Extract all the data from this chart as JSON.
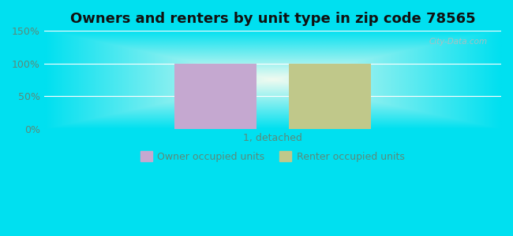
{
  "title": "Owners and renters by unit type in zip code 78565",
  "categories": [
    "1, detached"
  ],
  "owner_values": [
    100
  ],
  "renter_values": [
    100
  ],
  "owner_color": "#c5a8d0",
  "renter_color": "#c0c88a",
  "ylim": [
    0,
    150
  ],
  "yticks": [
    0,
    50,
    100,
    150
  ],
  "ytick_labels": [
    "0%",
    "50%",
    "100%",
    "150%"
  ],
  "bar_width": 0.18,
  "bar_gap": 0.07,
  "legend_owner": "Owner occupied units",
  "legend_renter": "Renter occupied units",
  "title_fontsize": 13,
  "watermark": "City-Data.com",
  "bg_cyan": "#00e0f0",
  "bg_center": "#f0fbf0",
  "tick_color": "#5a8a7a",
  "grid_color": "#ddeeee"
}
